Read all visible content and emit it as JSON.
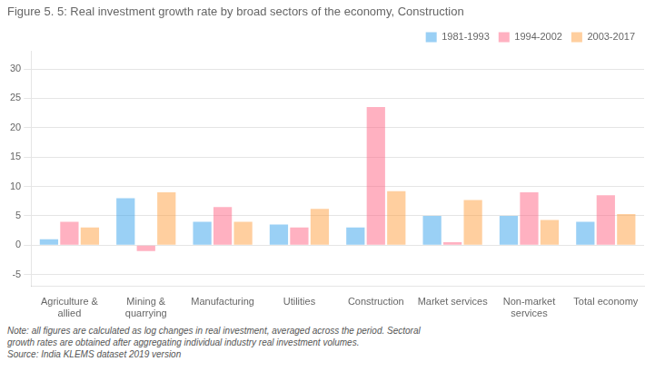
{
  "chart_data": {
    "type": "bar",
    "title": "Figure 5. 5: Real investment growth rate by broad sectors of the economy, Construction",
    "categories": [
      "Agriculture &\nallied",
      "Mining &\nquarrying",
      "Manufacturing",
      "Utilities",
      "Construction",
      "Market services",
      "Non-market\nservices",
      "Total economy"
    ],
    "series": [
      {
        "name": "1981-1993",
        "values": [
          1.0,
          8.0,
          4.0,
          3.5,
          3.0,
          5.0,
          5.0,
          4.0
        ]
      },
      {
        "name": "1994-2002",
        "values": [
          4.0,
          -1.0,
          6.5,
          3.0,
          23.5,
          0.5,
          9.0,
          8.5
        ]
      },
      {
        "name": "2003-2017",
        "values": [
          3.0,
          9.0,
          4.0,
          6.2,
          9.2,
          7.7,
          4.3,
          5.3
        ]
      }
    ],
    "ylim": [
      -7,
      33
    ],
    "yticks": [
      -5,
      0,
      5,
      10,
      15,
      20,
      25,
      30
    ],
    "grid": true,
    "legend": "upper right",
    "annotations": [
      "Note: all figures are calculated as log changes in real investment, averaged across the period. Sectoral",
      "growth rates are obtained after aggregating individual industry real investment volumes.",
      "Source: India KLEMS dataset 2019 version"
    ]
  }
}
